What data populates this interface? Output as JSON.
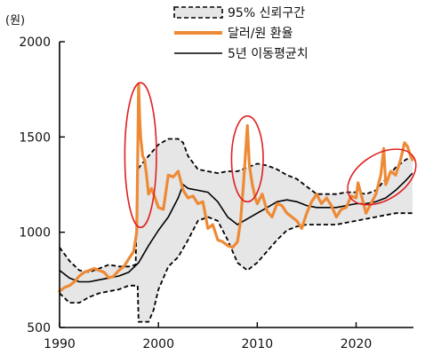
{
  "chart_data": {
    "type": "line",
    "title": "",
    "y_unit_label": "(원)",
    "xlim": [
      1990,
      2025.8
    ],
    "ylim": [
      500,
      2000
    ],
    "x_ticks": [
      1990,
      2000,
      2010,
      2020
    ],
    "y_ticks": [
      500,
      1000,
      1500,
      2000
    ],
    "grid": false,
    "legend": {
      "placement": "top-center",
      "entries": [
        {
          "key": "band",
          "label": "95% 신뢰구간",
          "style": "dashed-filled",
          "color": "#000000",
          "fill": "#e6e6e6"
        },
        {
          "key": "rate",
          "label": "달러/원 환율",
          "style": "thick-line",
          "color": "#ee8a35"
        },
        {
          "key": "ma",
          "label": "5년 이동평균치",
          "style": "line",
          "color": "#000000"
        }
      ]
    },
    "colors": {
      "rate": "#ee8a35",
      "ma": "#000000",
      "band_fill": "#e6e6e6",
      "band_edge": "#000000",
      "highlight": "#e02020"
    },
    "series": [
      {
        "name": "95% 신뢰구간",
        "kind": "band",
        "upper": [
          [
            1990,
            920
          ],
          [
            1991,
            850
          ],
          [
            1992,
            800
          ],
          [
            1993,
            790
          ],
          [
            1994,
            810
          ],
          [
            1995,
            830
          ],
          [
            1996,
            820
          ],
          [
            1997,
            820
          ],
          [
            1997.7,
            830
          ],
          [
            1997.9,
            1330
          ],
          [
            1998.5,
            1370
          ],
          [
            1999.5,
            1430
          ],
          [
            2000,
            1460
          ],
          [
            2001,
            1490
          ],
          [
            2002,
            1490
          ],
          [
            2002.5,
            1470
          ],
          [
            2003,
            1400
          ],
          [
            2004,
            1330
          ],
          [
            2005,
            1320
          ],
          [
            2006,
            1310
          ],
          [
            2007,
            1320
          ],
          [
            2008,
            1320
          ],
          [
            2009,
            1340
          ],
          [
            2010,
            1360
          ],
          [
            2011,
            1350
          ],
          [
            2012,
            1330
          ],
          [
            2013,
            1300
          ],
          [
            2014,
            1280
          ],
          [
            2015,
            1240
          ],
          [
            2016,
            1200
          ],
          [
            2017,
            1200
          ],
          [
            2018,
            1200
          ],
          [
            2019,
            1210
          ],
          [
            2020,
            1210
          ],
          [
            2021,
            1200
          ],
          [
            2022,
            1220
          ],
          [
            2023,
            1280
          ],
          [
            2024,
            1340
          ],
          [
            2025,
            1380
          ],
          [
            2025.7,
            1400
          ]
        ],
        "lower": [
          [
            1990,
            680
          ],
          [
            1991,
            630
          ],
          [
            1992,
            630
          ],
          [
            1993,
            660
          ],
          [
            1994,
            680
          ],
          [
            1995,
            690
          ],
          [
            1996,
            700
          ],
          [
            1997,
            720
          ],
          [
            1997.9,
            720
          ],
          [
            1998,
            530
          ],
          [
            1999,
            530
          ],
          [
            1999.5,
            590
          ],
          [
            2000,
            700
          ],
          [
            2001,
            820
          ],
          [
            2002,
            870
          ],
          [
            2003,
            960
          ],
          [
            2004,
            1060
          ],
          [
            2005,
            1080
          ],
          [
            2006,
            1060
          ],
          [
            2007,
            960
          ],
          [
            2008,
            840
          ],
          [
            2009,
            800
          ],
          [
            2010,
            840
          ],
          [
            2011,
            900
          ],
          [
            2012,
            960
          ],
          [
            2013,
            1010
          ],
          [
            2014,
            1030
          ],
          [
            2015,
            1040
          ],
          [
            2016,
            1040
          ],
          [
            2017,
            1040
          ],
          [
            2018,
            1040
          ],
          [
            2019,
            1050
          ],
          [
            2020,
            1060
          ],
          [
            2021,
            1070
          ],
          [
            2022,
            1080
          ],
          [
            2023,
            1090
          ],
          [
            2024,
            1100
          ],
          [
            2025,
            1100
          ],
          [
            2025.7,
            1100
          ]
        ]
      },
      {
        "name": "달러/원 환율",
        "kind": "line",
        "points": [
          [
            1990,
            690
          ],
          [
            1990.5,
            710
          ],
          [
            1991,
            720
          ],
          [
            1991.5,
            740
          ],
          [
            1992,
            770
          ],
          [
            1992.5,
            790
          ],
          [
            1993,
            800
          ],
          [
            1993.5,
            810
          ],
          [
            1994,
            800
          ],
          [
            1994.5,
            790
          ],
          [
            1995,
            760
          ],
          [
            1995.5,
            770
          ],
          [
            1996,
            800
          ],
          [
            1996.5,
            820
          ],
          [
            1997,
            860
          ],
          [
            1997.5,
            900
          ],
          [
            1997.8,
            1000
          ],
          [
            1997.9,
            1350
          ],
          [
            1998,
            1780
          ],
          [
            1998.1,
            1600
          ],
          [
            1998.2,
            1500
          ],
          [
            1998.4,
            1400
          ],
          [
            1998.6,
            1380
          ],
          [
            1998.8,
            1300
          ],
          [
            1999,
            1200
          ],
          [
            1999.3,
            1230
          ],
          [
            1999.6,
            1190
          ],
          [
            2000,
            1130
          ],
          [
            2000.5,
            1120
          ],
          [
            2001,
            1300
          ],
          [
            2001.5,
            1290
          ],
          [
            2002,
            1320
          ],
          [
            2002.5,
            1220
          ],
          [
            2003,
            1180
          ],
          [
            2003.5,
            1190
          ],
          [
            2004,
            1150
          ],
          [
            2004.5,
            1160
          ],
          [
            2005,
            1020
          ],
          [
            2005.5,
            1040
          ],
          [
            2006,
            960
          ],
          [
            2006.5,
            950
          ],
          [
            2007,
            930
          ],
          [
            2007.5,
            920
          ],
          [
            2008,
            950
          ],
          [
            2008.3,
            1050
          ],
          [
            2008.6,
            1250
          ],
          [
            2008.9,
            1480
          ],
          [
            2009,
            1560
          ],
          [
            2009.2,
            1350
          ],
          [
            2009.5,
            1250
          ],
          [
            2009.8,
            1180
          ],
          [
            2010,
            1150
          ],
          [
            2010.5,
            1200
          ],
          [
            2011,
            1110
          ],
          [
            2011.5,
            1080
          ],
          [
            2012,
            1150
          ],
          [
            2012.5,
            1140
          ],
          [
            2013,
            1100
          ],
          [
            2013.5,
            1080
          ],
          [
            2014,
            1060
          ],
          [
            2014.5,
            1020
          ],
          [
            2015,
            1100
          ],
          [
            2015.5,
            1160
          ],
          [
            2016,
            1200
          ],
          [
            2016.5,
            1150
          ],
          [
            2017,
            1180
          ],
          [
            2017.5,
            1140
          ],
          [
            2018,
            1080
          ],
          [
            2018.5,
            1120
          ],
          [
            2019,
            1130
          ],
          [
            2019.5,
            1190
          ],
          [
            2020,
            1180
          ],
          [
            2020.2,
            1260
          ],
          [
            2020.5,
            1200
          ],
          [
            2021,
            1100
          ],
          [
            2021.5,
            1150
          ],
          [
            2022,
            1200
          ],
          [
            2022.5,
            1300
          ],
          [
            2022.8,
            1440
          ],
          [
            2023,
            1250
          ],
          [
            2023.5,
            1320
          ],
          [
            2024,
            1300
          ],
          [
            2024.5,
            1380
          ],
          [
            2024.9,
            1470
          ],
          [
            2025.2,
            1450
          ],
          [
            2025.5,
            1400
          ],
          [
            2025.7,
            1380
          ]
        ]
      },
      {
        "name": "5년 이동평균치",
        "kind": "line",
        "points": [
          [
            1990,
            800
          ],
          [
            1991,
            760
          ],
          [
            1992,
            740
          ],
          [
            1993,
            740
          ],
          [
            1994,
            750
          ],
          [
            1995,
            760
          ],
          [
            1996,
            770
          ],
          [
            1997,
            790
          ],
          [
            1998,
            840
          ],
          [
            1999,
            930
          ],
          [
            2000,
            1010
          ],
          [
            2001,
            1080
          ],
          [
            2002,
            1180
          ],
          [
            2002.5,
            1250
          ],
          [
            2003,
            1230
          ],
          [
            2004,
            1220
          ],
          [
            2005,
            1210
          ],
          [
            2006,
            1160
          ],
          [
            2007,
            1080
          ],
          [
            2008,
            1040
          ],
          [
            2009,
            1070
          ],
          [
            2010,
            1100
          ],
          [
            2011,
            1130
          ],
          [
            2012,
            1160
          ],
          [
            2013,
            1170
          ],
          [
            2014,
            1160
          ],
          [
            2015,
            1140
          ],
          [
            2016,
            1130
          ],
          [
            2017,
            1130
          ],
          [
            2018,
            1130
          ],
          [
            2019,
            1140
          ],
          [
            2020,
            1150
          ],
          [
            2021,
            1150
          ],
          [
            2022,
            1160
          ],
          [
            2023,
            1180
          ],
          [
            2024,
            1220
          ],
          [
            2025,
            1270
          ],
          [
            2025.7,
            1310
          ]
        ]
      }
    ],
    "annotations": [
      {
        "kind": "ellipse",
        "label": "",
        "center": [
          1998.2,
          1405
        ],
        "radii": [
          1.6,
          380
        ],
        "color": "#e02020"
      },
      {
        "kind": "ellipse",
        "label": "",
        "center": [
          2009,
          1385
        ],
        "radii": [
          1.6,
          225
        ],
        "color": "#e02020"
      },
      {
        "kind": "ellipse",
        "label": "",
        "center": [
          2022.6,
          1290
        ],
        "radii": [
          3.8,
          120
        ],
        "rotate": -32,
        "color": "#e02020"
      }
    ]
  }
}
